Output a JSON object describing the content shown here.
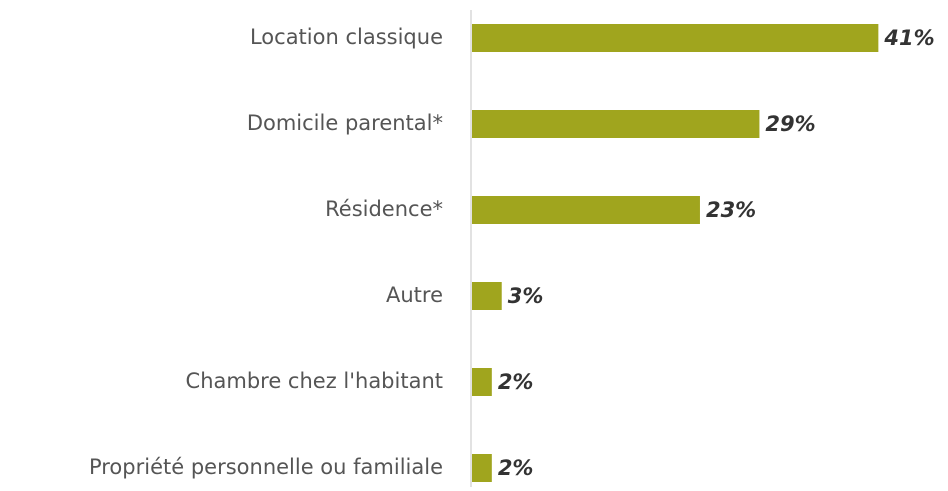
{
  "chart_data": {
    "type": "bar",
    "orientation": "horizontal",
    "categories": [
      "Location classique",
      "Domicile parental*",
      "Résidence*",
      "Autre",
      "Chambre chez l'habitant",
      "Propriété personnelle ou familiale"
    ],
    "values": [
      41,
      29,
      23,
      3,
      2,
      2
    ],
    "value_labels": [
      "41%",
      "29%",
      "23%",
      "3%",
      "2%",
      "2%"
    ],
    "color": "#a0a51e",
    "xlim": [
      0,
      45
    ]
  }
}
